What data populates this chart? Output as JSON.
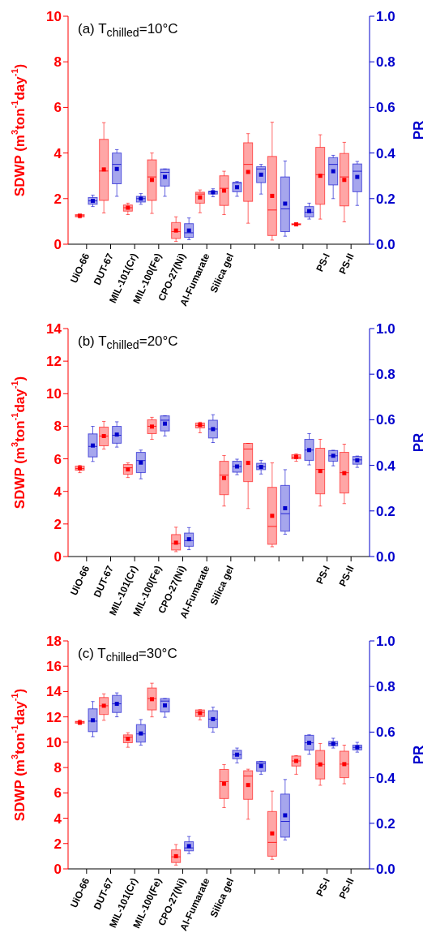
{
  "chart_data": [
    {
      "type": "box",
      "title": "(a) T$_{chilled}$=10°C",
      "ylabel": "SDWP (m$^{3}$ton$^{-1}$day$^{-1}$)",
      "y2label": "PR",
      "categories": [
        "UiO-66",
        "DUT-67",
        "MIL-101(Cr)",
        "MIL-100(Fe)",
        "CPO-27(Ni)",
        "Al-Fumarate",
        "Silica gel",
        null,
        null,
        null,
        "PS-I",
        "PS-II"
      ],
      "ylim": [
        0,
        10
      ],
      "yticks": [
        0,
        2,
        4,
        6,
        8,
        10
      ],
      "y2lim": [
        0,
        1
      ],
      "y2ticks": [
        {
          "value": 0,
          "label": "0.0"
        },
        {
          "value": 0.2,
          "label": "0.2"
        },
        {
          "value": 0.4,
          "label": "0.4"
        },
        {
          "value": 0.6,
          "label": "0.6"
        },
        {
          "value": 0.8,
          "label": "0.8"
        },
        {
          "value": 1,
          "label": "1.0"
        }
      ],
      "series": [
        {
          "color": "#ff0000",
          "boxes": [
            {
              "low": 1.15,
              "q1": 1.2,
              "median": 1.25,
              "q3": 1.3,
              "high": 1.3,
              "mean": 1.25
            },
            {
              "low": 1.37,
              "q1": 1.92,
              "median": 3.21,
              "q3": 4.6,
              "high": 5.33,
              "mean": 3.28
            },
            {
              "low": 1.3,
              "q1": 1.45,
              "median": 1.6,
              "q3": 1.72,
              "high": 1.8,
              "mean": 1.6
            },
            {
              "low": 1.35,
              "q1": 1.92,
              "median": 2.95,
              "q3": 3.7,
              "high": 4.0,
              "mean": 2.82
            },
            {
              "low": 0.12,
              "q1": 0.25,
              "median": 0.55,
              "q3": 0.95,
              "high": 1.2,
              "mean": 0.6
            },
            {
              "low": 1.38,
              "q1": 1.8,
              "median": 2.2,
              "q3": 2.28,
              "high": 2.38,
              "mean": 2.05
            },
            {
              "low": 1.3,
              "q1": 1.7,
              "median": 2.45,
              "q3": 3.0,
              "high": 3.2,
              "mean": 2.35
            },
            {
              "low": 0.92,
              "q1": 1.88,
              "median": 3.5,
              "q3": 4.45,
              "high": 4.85,
              "mean": 3.17
            },
            {
              "low": 0.18,
              "q1": 0.38,
              "median": 1.5,
              "q3": 3.85,
              "high": 5.35,
              "mean": 2.12
            },
            {
              "low": 0.83,
              "q1": 0.85,
              "median": 0.87,
              "q3": 0.9,
              "high": 0.92,
              "mean": 0.87
            },
            {
              "low": 1.1,
              "q1": 1.75,
              "median": 3.05,
              "q3": 4.25,
              "high": 4.8,
              "mean": 3.0
            },
            {
              "low": 0.98,
              "q1": 1.68,
              "median": 2.95,
              "q3": 3.98,
              "high": 4.47,
              "mean": 2.82
            }
          ]
        },
        {
          "color": "#0000cc",
          "axis": "y2",
          "boxes": [
            {
              "low": 0.165,
              "q1": 0.175,
              "median": 0.19,
              "q3": 0.205,
              "high": 0.215,
              "mean": 0.19
            },
            {
              "low": 0.21,
              "q1": 0.265,
              "median": 0.35,
              "q3": 0.4,
              "high": 0.415,
              "mean": 0.33
            },
            {
              "low": 0.175,
              "q1": 0.185,
              "median": 0.2,
              "q3": 0.21,
              "high": 0.222,
              "mean": 0.2
            },
            {
              "low": 0.21,
              "q1": 0.255,
              "median": 0.315,
              "q3": 0.33,
              "high": 0.33,
              "mean": 0.295
            },
            {
              "low": 0.02,
              "q1": 0.03,
              "median": 0.05,
              "q3": 0.09,
              "high": 0.115,
              "mean": 0.06
            },
            {
              "low": 0.208,
              "q1": 0.22,
              "median": 0.23,
              "q3": 0.232,
              "high": 0.243,
              "mean": 0.228
            },
            {
              "low": 0.21,
              "q1": 0.23,
              "median": 0.27,
              "q3": 0.27,
              "high": 0.275,
              "mean": 0.25
            },
            {
              "low": 0.22,
              "q1": 0.27,
              "median": 0.33,
              "q3": 0.34,
              "high": 0.35,
              "mean": 0.305
            },
            {
              "low": 0.035,
              "q1": 0.055,
              "median": 0.155,
              "q3": 0.295,
              "high": 0.365,
              "mean": 0.178
            },
            {
              "low": 0.11,
              "q1": 0.12,
              "median": 0.14,
              "q3": 0.165,
              "high": 0.18,
              "mean": 0.145
            },
            {
              "low": 0.2,
              "q1": 0.26,
              "median": 0.35,
              "q3": 0.38,
              "high": 0.39,
              "mean": 0.32
            },
            {
              "low": 0.17,
              "q1": 0.23,
              "median": 0.32,
              "q3": 0.352,
              "high": 0.363,
              "mean": 0.295
            }
          ]
        }
      ]
    },
    {
      "type": "box",
      "title": "(b) T$_{chilled}$=20°C",
      "ylabel": "SDWP (m$^{3}$ton$^{-1}$day$^{-1}$)",
      "y2label": "PR",
      "categories": [
        "UiO-66",
        "DUT-67",
        "MIL-101(Cr)",
        "MIL-100(Fe)",
        "CPO-27(Ni)",
        "Al-Fumarate",
        "Silica gel",
        null,
        null,
        null,
        "PS-I",
        "PS-II"
      ],
      "ylim": [
        0,
        14
      ],
      "yticks": [
        0,
        2,
        4,
        6,
        8,
        10,
        12,
        14
      ],
      "y2lim": [
        0,
        1
      ],
      "y2ticks": [
        {
          "value": 0,
          "label": "0.0"
        },
        {
          "value": 0.2,
          "label": "0.2"
        },
        {
          "value": 0.4,
          "label": "0.4"
        },
        {
          "value": 0.6,
          "label": "0.6"
        },
        {
          "value": 0.8,
          "label": "0.8"
        },
        {
          "value": 1,
          "label": "1.0"
        }
      ],
      "series": [
        {
          "color": "#ff0000",
          "boxes": [
            {
              "low": 5.15,
              "q1": 5.3,
              "median": 5.4,
              "q3": 5.55,
              "high": 5.6,
              "mean": 5.42
            },
            {
              "low": 6.6,
              "q1": 6.8,
              "median": 7.4,
              "q3": 7.95,
              "high": 8.3,
              "mean": 7.4
            },
            {
              "low": 4.85,
              "q1": 5.05,
              "median": 5.45,
              "q3": 5.65,
              "high": 5.75,
              "mean": 5.35
            },
            {
              "low": 7.2,
              "q1": 7.55,
              "median": 8.0,
              "q3": 8.4,
              "high": 8.55,
              "mean": 7.98
            },
            {
              "low": 0.3,
              "q1": 0.4,
              "median": 0.8,
              "q3": 1.35,
              "high": 1.8,
              "mean": 0.85
            },
            {
              "low": 7.6,
              "q1": 7.9,
              "median": 8.05,
              "q3": 8.2,
              "high": 8.25,
              "mean": 8.08
            },
            {
              "low": 3.1,
              "q1": 3.8,
              "median": 5.0,
              "q3": 5.85,
              "high": 6.2,
              "mean": 4.82
            },
            {
              "low": 2.95,
              "q1": 4.6,
              "median": 6.6,
              "q3": 6.95,
              "high": 6.95,
              "mean": 5.75
            },
            {
              "low": 0.6,
              "q1": 0.75,
              "median": 1.85,
              "q3": 4.25,
              "high": 5.75,
              "mean": 2.5
            },
            {
              "low": 5.85,
              "q1": 6.0,
              "median": 6.1,
              "q3": 6.25,
              "high": 6.3,
              "mean": 6.12
            },
            {
              "low": 3.1,
              "q1": 3.85,
              "median": 5.35,
              "q3": 6.65,
              "high": 7.2,
              "mean": 5.25
            },
            {
              "low": 3.25,
              "q1": 3.9,
              "median": 5.15,
              "q3": 6.4,
              "high": 6.9,
              "mean": 5.12
            }
          ]
        },
        {
          "color": "#0000cc",
          "axis": "y2",
          "boxes": [
            {
              "low": 0.417,
              "q1": 0.437,
              "median": 0.483,
              "q3": 0.538,
              "high": 0.571,
              "mean": 0.487
            },
            {
              "low": 0.48,
              "q1": 0.497,
              "median": 0.532,
              "q3": 0.571,
              "high": 0.591,
              "mean": 0.535
            },
            {
              "low": 0.341,
              "q1": 0.368,
              "median": 0.421,
              "q3": 0.457,
              "high": 0.467,
              "mean": 0.412
            },
            {
              "low": 0.529,
              "q1": 0.551,
              "median": 0.598,
              "q3": 0.617,
              "high": 0.617,
              "mean": 0.583
            },
            {
              "low": 0.03,
              "q1": 0.045,
              "median": 0.07,
              "q3": 0.103,
              "high": 0.127,
              "mean": 0.076
            },
            {
              "low": 0.5,
              "q1": 0.52,
              "median": 0.559,
              "q3": 0.598,
              "high": 0.622,
              "mean": 0.559
            },
            {
              "low": 0.359,
              "q1": 0.37,
              "median": 0.395,
              "q3": 0.418,
              "high": 0.427,
              "mean": 0.395
            },
            {
              "low": 0.362,
              "q1": 0.381,
              "median": 0.394,
              "q3": 0.409,
              "high": 0.422,
              "mean": 0.393
            },
            {
              "low": 0.098,
              "q1": 0.111,
              "median": 0.188,
              "q3": 0.312,
              "high": 0.381,
              "mean": 0.212
            },
            {
              "low": 0.402,
              "q1": 0.422,
              "median": 0.467,
              "q3": 0.514,
              "high": 0.539,
              "mean": 0.467
            },
            {
              "low": 0.398,
              "q1": 0.418,
              "median": 0.442,
              "q3": 0.465,
              "high": 0.466,
              "mean": 0.442
            },
            {
              "low": 0.391,
              "q1": 0.405,
              "median": 0.424,
              "q3": 0.439,
              "high": 0.441,
              "mean": 0.422
            }
          ]
        }
      ]
    },
    {
      "type": "box",
      "title": "(c) T$_{chilled}$=30°C",
      "ylabel": "SDWP (m$^{3}$ton$^{-1}$day$^{-1}$)",
      "y2label": "PR",
      "categories": [
        "UiO-66",
        "DUT-67",
        "MIL-101(Cr)",
        "MIL-100(Fe)",
        "CPO-27(Ni)",
        "Al-Fumarate",
        "Silica gel",
        null,
        null,
        null,
        "PS-I",
        "PS-II"
      ],
      "ylim": [
        0,
        18
      ],
      "yticks": [
        0,
        2,
        4,
        6,
        8,
        10,
        12,
        14,
        16,
        18
      ],
      "y2lim": [
        0,
        1
      ],
      "y2ticks": [
        {
          "value": 0,
          "label": "0.0"
        },
        {
          "value": 0.2,
          "label": "0.2"
        },
        {
          "value": 0.4,
          "label": "0.4"
        },
        {
          "value": 0.6,
          "label": "0.6"
        },
        {
          "value": 0.8,
          "label": "0.8"
        },
        {
          "value": 1,
          "label": "1.0"
        }
      ],
      "series": [
        {
          "color": "#ff0000",
          "boxes": [
            {
              "low": 11.4,
              "q1": 11.5,
              "median": 11.6,
              "q3": 11.65,
              "high": 11.75,
              "mean": 11.55
            },
            {
              "low": 11.73,
              "q1": 12.19,
              "median": 12.88,
              "q3": 13.53,
              "high": 13.82,
              "mean": 12.88
            },
            {
              "low": 9.6,
              "q1": 9.96,
              "median": 10.4,
              "q3": 10.58,
              "high": 10.75,
              "mean": 10.27
            },
            {
              "low": 12.0,
              "q1": 12.55,
              "median": 13.45,
              "q3": 14.28,
              "high": 14.66,
              "mean": 13.4
            },
            {
              "low": 0.3,
              "q1": 0.5,
              "median": 0.95,
              "q3": 1.5,
              "high": 1.92,
              "mean": 1.0
            },
            {
              "low": 11.77,
              "q1": 12.03,
              "median": 12.35,
              "q3": 12.55,
              "high": 12.57,
              "mean": 12.3
            },
            {
              "low": 4.84,
              "q1": 5.55,
              "median": 6.89,
              "q3": 7.85,
              "high": 8.23,
              "mean": 6.72
            },
            {
              "low": 3.92,
              "q1": 5.49,
              "median": 7.33,
              "q3": 7.75,
              "high": 7.87,
              "mean": 6.62
            },
            {
              "low": 0.75,
              "q1": 1.0,
              "median": 2.09,
              "q3": 4.53,
              "high": 6.14,
              "mean": 2.8
            },
            {
              "low": 7.47,
              "q1": 8.12,
              "median": 8.52,
              "q3": 8.91,
              "high": 8.94,
              "mean": 8.52
            },
            {
              "low": 6.6,
              "q1": 7.1,
              "median": 8.25,
              "q3": 9.35,
              "high": 9.9,
              "mean": 8.25
            },
            {
              "low": 6.72,
              "q1": 7.2,
              "median": 8.27,
              "q3": 9.29,
              "high": 9.77,
              "mean": 8.27
            }
          ]
        },
        {
          "color": "#0000cc",
          "axis": "y2",
          "boxes": [
            {
              "low": 0.58,
              "q1": 0.602,
              "median": 0.648,
              "q3": 0.702,
              "high": 0.734,
              "mean": 0.652
            },
            {
              "low": 0.667,
              "q1": 0.686,
              "median": 0.724,
              "q3": 0.761,
              "high": 0.772,
              "mean": 0.724
            },
            {
              "low": 0.543,
              "q1": 0.556,
              "median": 0.592,
              "q3": 0.633,
              "high": 0.655,
              "mean": 0.594
            },
            {
              "low": 0.665,
              "q1": 0.688,
              "median": 0.736,
              "q3": 0.747,
              "high": 0.747,
              "mean": 0.717
            },
            {
              "low": 0.067,
              "q1": 0.079,
              "median": 0.092,
              "q3": 0.119,
              "high": 0.142,
              "mean": 0.1
            },
            {
              "low": 0.6,
              "q1": 0.62,
              "median": 0.657,
              "q3": 0.694,
              "high": 0.709,
              "mean": 0.657
            },
            {
              "low": 0.465,
              "q1": 0.483,
              "median": 0.501,
              "q3": 0.52,
              "high": 0.53,
              "mean": 0.501
            },
            {
              "low": 0.415,
              "q1": 0.428,
              "median": 0.463,
              "q3": 0.471,
              "high": 0.472,
              "mean": 0.451
            },
            {
              "low": 0.127,
              "q1": 0.139,
              "median": 0.208,
              "q3": 0.328,
              "high": 0.392,
              "mean": 0.235
            },
            {
              "low": 0.503,
              "q1": 0.521,
              "median": 0.553,
              "q3": 0.586,
              "high": 0.588,
              "mean": 0.553
            },
            {
              "low": 0.53,
              "q1": 0.54,
              "median": 0.549,
              "q3": 0.559,
              "high": 0.573,
              "mean": 0.549
            },
            {
              "low": 0.512,
              "q1": 0.522,
              "median": 0.533,
              "q3": 0.543,
              "high": 0.555,
              "mean": 0.533
            }
          ]
        }
      ]
    }
  ]
}
